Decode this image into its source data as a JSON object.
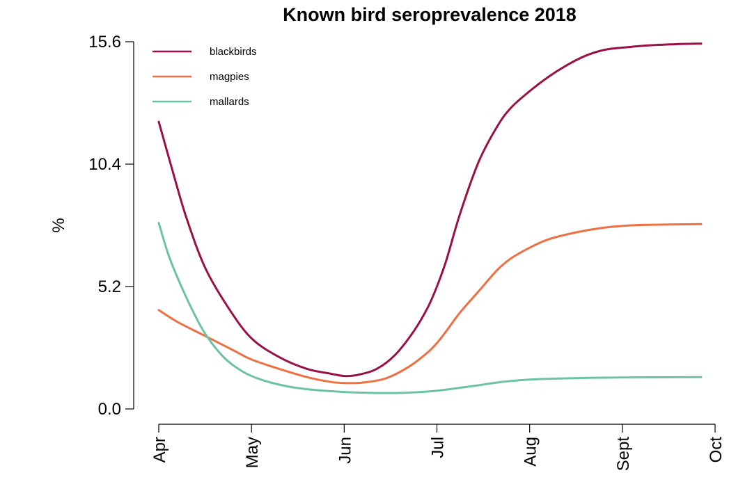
{
  "chart_data": {
    "type": "line",
    "title": "Known bird seroprevalence 2018",
    "ylabel": "%",
    "xlabel": "",
    "x_ticks": [
      "Apr",
      "May",
      "Jun",
      "Jul",
      "Aug",
      "Sept",
      "Oct"
    ],
    "y_ticks": [
      "0.0",
      "5.2",
      "10.4",
      "15.6"
    ],
    "ylim": [
      0,
      15.6
    ],
    "xlim": [
      0,
      6
    ],
    "grid": false,
    "legend_position": "top-left",
    "series": [
      {
        "name": "blackbirds",
        "color": "#9a0f45",
        "x": [
          0,
          0.15,
          0.3,
          0.5,
          0.75,
          1.0,
          1.3,
          1.6,
          1.85,
          2.0,
          2.15,
          2.35,
          2.55,
          2.75,
          2.9,
          3.0,
          3.1,
          3.25,
          3.45,
          3.65,
          3.8,
          4.0,
          4.2,
          4.4,
          4.6,
          4.8,
          5.0,
          5.3,
          5.6,
          5.85
        ],
        "values": [
          12.2,
          10.1,
          8.1,
          6.0,
          4.3,
          3.0,
          2.2,
          1.7,
          1.5,
          1.4,
          1.45,
          1.7,
          2.3,
          3.3,
          4.3,
          5.2,
          6.3,
          8.3,
          10.5,
          12.0,
          12.8,
          13.5,
          14.1,
          14.6,
          15.0,
          15.25,
          15.35,
          15.45,
          15.5,
          15.52
        ]
      },
      {
        "name": "magpies",
        "color": "#ef6f42",
        "x": [
          0,
          0.2,
          0.5,
          0.8,
          1.0,
          1.3,
          1.6,
          1.85,
          2.0,
          2.2,
          2.45,
          2.7,
          2.9,
          3.0,
          3.1,
          3.25,
          3.45,
          3.65,
          3.8,
          4.0,
          4.2,
          4.5,
          4.8,
          5.1,
          5.4,
          5.85
        ],
        "values": [
          4.2,
          3.7,
          3.1,
          2.5,
          2.1,
          1.7,
          1.35,
          1.15,
          1.1,
          1.12,
          1.3,
          1.8,
          2.4,
          2.8,
          3.3,
          4.1,
          5.0,
          5.9,
          6.4,
          6.85,
          7.2,
          7.5,
          7.7,
          7.8,
          7.83,
          7.85
        ]
      },
      {
        "name": "mallards",
        "color": "#6cc3a1",
        "x": [
          0,
          0.1,
          0.2,
          0.35,
          0.5,
          0.7,
          0.9,
          1.1,
          1.4,
          1.7,
          2.0,
          2.3,
          2.6,
          2.9,
          3.1,
          3.4,
          3.7,
          4.0,
          4.4,
          4.8,
          5.2,
          5.85
        ],
        "values": [
          7.9,
          6.6,
          5.6,
          4.3,
          3.2,
          2.2,
          1.6,
          1.25,
          0.95,
          0.8,
          0.72,
          0.68,
          0.68,
          0.74,
          0.82,
          0.98,
          1.15,
          1.25,
          1.3,
          1.33,
          1.34,
          1.35
        ]
      }
    ]
  }
}
